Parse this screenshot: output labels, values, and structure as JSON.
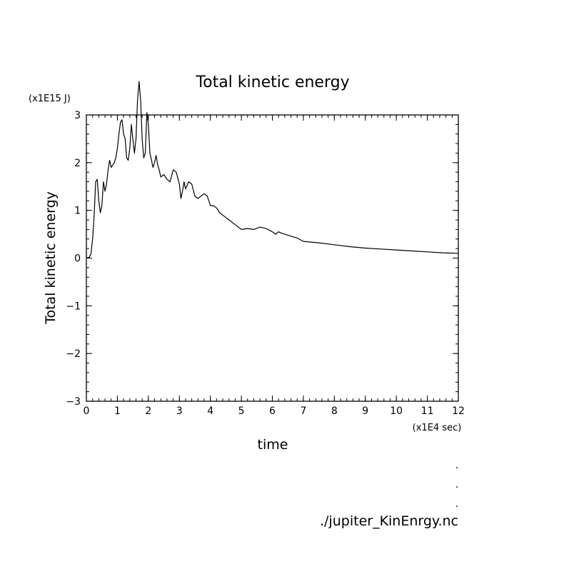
{
  "chart_data": {
    "type": "line",
    "title": "Total kinetic energy",
    "xlabel": "time",
    "ylabel": "Total kinetic energy",
    "x_unit": "(x1E4 sec)",
    "y_unit": "(x1E15 J)",
    "xlim": [
      0,
      12
    ],
    "ylim": [
      -3,
      3
    ],
    "x_ticks": [
      "0",
      "1",
      "2",
      "3",
      "4",
      "5",
      "6",
      "7",
      "8",
      "9",
      "10",
      "11",
      "12"
    ],
    "y_ticks": [
      "-3",
      "-2",
      "-1",
      "0",
      "1",
      "2",
      "3"
    ],
    "grid": false,
    "series": [
      {
        "color": "#000000",
        "x": [
          0,
          0.1,
          0.15,
          0.2,
          0.25,
          0.3,
          0.35,
          0.4,
          0.45,
          0.5,
          0.55,
          0.6,
          0.65,
          0.7,
          0.75,
          0.8,
          0.85,
          0.9,
          0.95,
          1.0,
          1.05,
          1.1,
          1.15,
          1.2,
          1.25,
          1.3,
          1.35,
          1.4,
          1.45,
          1.5,
          1.55,
          1.6,
          1.65,
          1.7,
          1.75,
          1.8,
          1.85,
          1.9,
          1.95,
          2.0,
          2.05,
          2.1,
          2.15,
          2.2,
          2.25,
          2.3,
          2.35,
          2.4,
          2.5,
          2.6,
          2.7,
          2.8,
          2.9,
          3.0,
          3.05,
          3.1,
          3.15,
          3.2,
          3.3,
          3.4,
          3.5,
          3.6,
          3.7,
          3.8,
          3.9,
          4.0,
          4.1,
          4.2,
          4.3,
          4.4,
          4.5,
          4.6,
          4.8,
          5.0,
          5.2,
          5.4,
          5.6,
          5.8,
          6.0,
          6.1,
          6.2,
          6.3,
          6.5,
          6.8,
          7.0,
          7.5,
          8.0,
          8.5,
          9.0,
          9.5,
          10.0,
          10.5,
          11.0,
          11.5,
          12.0
        ],
        "values": [
          0.0,
          0.02,
          0.1,
          0.4,
          0.9,
          1.6,
          1.65,
          1.2,
          0.95,
          1.1,
          1.6,
          1.4,
          1.55,
          1.85,
          2.05,
          1.9,
          1.95,
          2.0,
          2.1,
          2.3,
          2.6,
          2.85,
          2.9,
          2.6,
          2.5,
          2.1,
          2.05,
          2.3,
          2.8,
          2.5,
          2.2,
          2.5,
          3.3,
          3.7,
          3.3,
          2.5,
          2.1,
          2.2,
          3.05,
          2.8,
          2.2,
          2.05,
          1.9,
          2.0,
          2.15,
          1.95,
          1.85,
          1.7,
          1.75,
          1.65,
          1.6,
          1.85,
          1.8,
          1.55,
          1.25,
          1.4,
          1.6,
          1.45,
          1.6,
          1.55,
          1.3,
          1.25,
          1.3,
          1.35,
          1.3,
          1.1,
          1.1,
          1.05,
          0.95,
          0.9,
          0.85,
          0.8,
          0.7,
          0.6,
          0.62,
          0.6,
          0.65,
          0.62,
          0.55,
          0.5,
          0.55,
          0.52,
          0.48,
          0.42,
          0.35,
          0.32,
          0.28,
          0.24,
          0.21,
          0.19,
          0.17,
          0.15,
          0.13,
          0.11,
          0.1
        ]
      }
    ]
  },
  "footer": {
    "dots": [
      ".",
      ".",
      "."
    ],
    "filename": "./jupiter_KinEnrgy.nc"
  }
}
